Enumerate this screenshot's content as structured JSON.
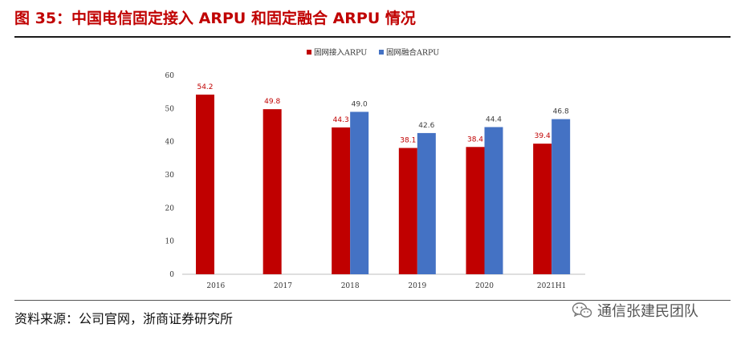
{
  "header": {
    "title": "图 35：中国电信固定接入 ARPU 和固定融合 ARPU 情况"
  },
  "footer": {
    "source": "资料来源：公司官网，浙商证券研究所",
    "watermark": "通信张建民团队"
  },
  "colors": {
    "fixed": "#c00000",
    "converged": "#4472c4",
    "title": "#c00000"
  },
  "chart_data": {
    "type": "bar",
    "title": "",
    "categories": [
      "2016",
      "2017",
      "2018",
      "2019",
      "2020",
      "2021H1"
    ],
    "series": [
      {
        "name": "固网接入ARPU",
        "values": [
          54.2,
          49.8,
          44.3,
          38.1,
          38.4,
          39.4
        ],
        "color": "#c00000"
      },
      {
        "name": "固网融合ARPU",
        "values": [
          null,
          null,
          49.0,
          42.6,
          44.4,
          46.8
        ],
        "color": "#4472c4"
      }
    ],
    "ylim": [
      0,
      60
    ],
    "yticks": [
      0,
      10,
      20,
      30,
      40,
      50,
      60
    ],
    "xlabel": "",
    "ylabel": "",
    "grid": false,
    "legend": "top-center"
  }
}
